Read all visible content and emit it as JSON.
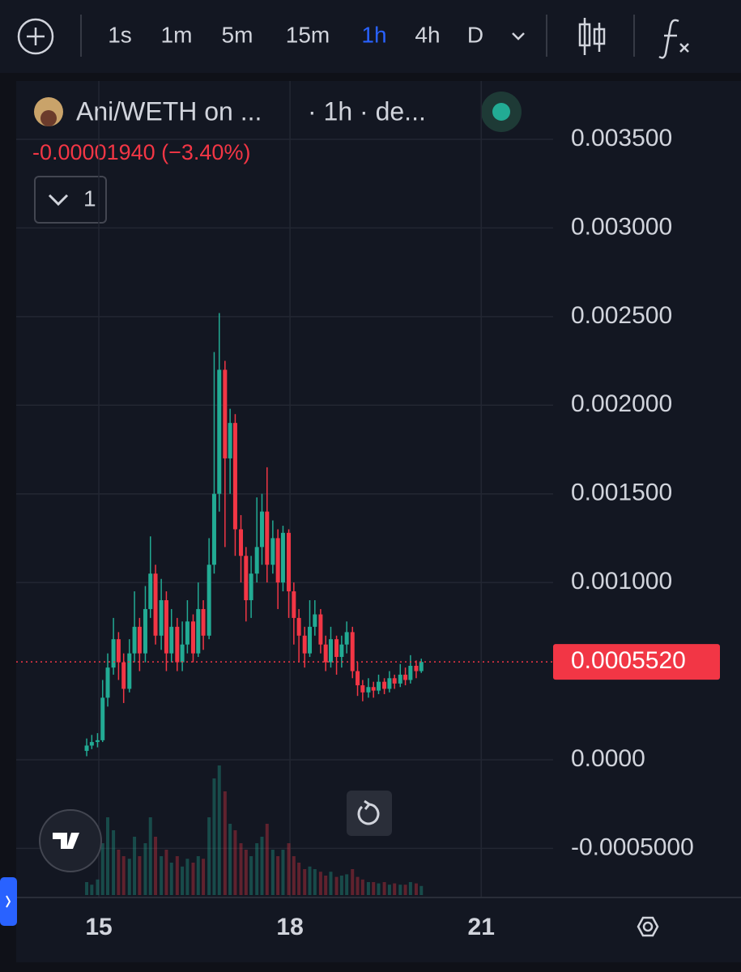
{
  "toolbar": {
    "intervals": [
      "1s",
      "1m",
      "5m",
      "15m",
      "1h",
      "4h",
      "D"
    ],
    "active": "1h"
  },
  "chart_data": {
    "type": "candlestick",
    "title": "Ani/WETH on ...",
    "subtitle": "· 1h · de...",
    "change_label": "-0.00001940 (−3.40%)",
    "indicators_label": "1",
    "x": [
      14.81,
      14.89,
      14.98,
      15.06,
      15.14,
      15.23,
      15.31,
      15.39,
      15.48,
      15.56,
      15.64,
      15.73,
      15.81,
      15.89,
      15.98,
      16.06,
      16.14,
      16.23,
      16.31,
      16.39,
      16.48,
      16.56,
      16.64,
      16.73,
      16.81,
      16.89,
      16.98,
      17.06,
      17.14,
      17.23,
      17.31,
      17.39,
      17.48,
      17.56,
      17.64,
      17.73,
      17.81,
      17.89,
      17.98,
      18.06,
      18.14,
      18.23,
      18.31,
      18.39,
      18.48,
      18.56,
      18.64,
      18.73,
      18.81,
      18.89,
      18.98,
      19.06,
      19.14,
      19.23,
      19.31,
      19.39,
      19.48,
      19.56,
      19.64,
      19.73,
      19.81,
      19.89,
      19.98,
      20.06
    ],
    "open": [
      5e-05,
      8e-05,
      0.0001,
      0.00011,
      0.00035,
      0.00052,
      0.00068,
      0.00055,
      0.0004,
      0.0006,
      0.00075,
      0.0006,
      0.00085,
      0.00105,
      0.0007,
      0.0009,
      0.0006,
      0.00075,
      0.00055,
      0.00065,
      0.00078,
      0.0006,
      0.00085,
      0.0007,
      0.0011,
      0.0015,
      0.0022,
      0.0017,
      0.0019,
      0.0013,
      0.00115,
      0.0009,
      0.00105,
      0.0012,
      0.0014,
      0.0011,
      0.00125,
      0.001,
      0.00128,
      0.00095,
      0.0008,
      0.0007,
      0.0006,
      0.00075,
      0.00082,
      0.00065,
      0.00055,
      0.00068,
      0.00058,
      0.00065,
      0.00072,
      0.0005,
      0.00042,
      0.00038,
      0.00041,
      0.00039,
      0.00044,
      0.0004,
      0.00046,
      0.00043,
      0.00048,
      0.00045,
      0.00053,
      0.0005
    ],
    "high": [
      0.00012,
      0.00014,
      0.00015,
      0.00045,
      0.0006,
      0.0008,
      0.00072,
      0.0006,
      0.00068,
      0.00095,
      0.0008,
      0.00098,
      0.00126,
      0.0011,
      0.00102,
      0.00095,
      0.00085,
      0.0008,
      0.00078,
      0.0009,
      0.00082,
      0.001,
      0.0009,
      0.00125,
      0.0023,
      0.00252,
      0.00225,
      0.00198,
      0.00195,
      0.00138,
      0.0012,
      0.00115,
      0.00148,
      0.0015,
      0.00165,
      0.00135,
      0.0013,
      0.00132,
      0.0013,
      0.001,
      0.00085,
      0.00075,
      0.0009,
      0.0009,
      0.00085,
      0.0007,
      0.00075,
      0.0007,
      0.0007,
      0.00078,
      0.00075,
      0.00055,
      0.00045,
      0.00046,
      0.00044,
      0.00048,
      0.00046,
      0.0005,
      0.00048,
      0.00054,
      0.00052,
      0.00059,
      0.00056,
      0.00057
    ],
    "low": [
      2e-05,
      6e-05,
      7e-05,
      0.0001,
      0.0003,
      0.00048,
      0.00045,
      0.00032,
      0.00038,
      0.00055,
      0.0005,
      0.00055,
      0.0008,
      0.00065,
      0.00062,
      0.0005,
      0.00055,
      0.0005,
      0.0005,
      0.0006,
      0.00055,
      0.00058,
      0.00062,
      0.00068,
      0.00105,
      0.0014,
      0.0012,
      0.0015,
      0.00115,
      0.001,
      0.00078,
      0.0008,
      0.001,
      0.0011,
      0.001,
      0.00105,
      0.00085,
      0.00095,
      0.0008,
      0.00065,
      0.00055,
      0.00052,
      0.00058,
      0.0007,
      0.0006,
      0.0005,
      0.00052,
      0.00048,
      0.00052,
      0.0006,
      0.00046,
      0.00036,
      0.00033,
      0.00035,
      0.00035,
      0.00037,
      0.00037,
      0.00038,
      0.0004,
      0.00041,
      0.00042,
      0.00043,
      0.00046,
      0.00049
    ],
    "close": [
      8e-05,
      0.0001,
      0.00011,
      0.00035,
      0.00052,
      0.00068,
      0.00055,
      0.0004,
      0.0006,
      0.00075,
      0.0006,
      0.00085,
      0.00105,
      0.0007,
      0.0009,
      0.0006,
      0.00075,
      0.00055,
      0.00065,
      0.00078,
      0.0006,
      0.00085,
      0.0007,
      0.0011,
      0.0015,
      0.0022,
      0.0017,
      0.0019,
      0.0013,
      0.00115,
      0.0009,
      0.00105,
      0.0012,
      0.0014,
      0.0011,
      0.00125,
      0.001,
      0.00128,
      0.00095,
      0.0008,
      0.0007,
      0.0006,
      0.00075,
      0.00082,
      0.00065,
      0.00055,
      0.00068,
      0.00058,
      0.00065,
      0.00072,
      0.0005,
      0.00042,
      0.00038,
      0.00041,
      0.00039,
      0.00044,
      0.0004,
      0.00046,
      0.00043,
      0.00048,
      0.00045,
      0.00053,
      0.0005,
      0.000552
    ],
    "volume": [
      10,
      8,
      12,
      40,
      60,
      50,
      35,
      30,
      28,
      45,
      30,
      40,
      60,
      45,
      30,
      35,
      25,
      30,
      22,
      28,
      25,
      30,
      28,
      60,
      90,
      100,
      80,
      55,
      50,
      40,
      35,
      30,
      40,
      45,
      55,
      35,
      30,
      35,
      40,
      30,
      25,
      20,
      22,
      20,
      18,
      15,
      18,
      14,
      15,
      16,
      20,
      14,
      12,
      10,
      10,
      9,
      10,
      8,
      9,
      8,
      8,
      10,
      9,
      7
    ],
    "up_color": "#22ab94",
    "down_color": "#f23645",
    "xlim": [
      13.704,
      22.128
    ],
    "xticks": [
      15,
      18,
      21
    ],
    "ylim": [
      -0.000777,
      0.003829
    ],
    "yticks": [
      {
        "value": -0.0005,
        "label": "-0.0005000"
      },
      {
        "value": 0,
        "label": "0.0000"
      },
      {
        "value": 0.001,
        "label": "0.001000"
      },
      {
        "value": 0.0015,
        "label": "0.001500"
      },
      {
        "value": 0.002,
        "label": "0.002000"
      },
      {
        "value": 0.0025,
        "label": "0.002500"
      },
      {
        "value": 0.003,
        "label": "0.003000"
      },
      {
        "value": 0.0035,
        "label": "0.003500"
      }
    ],
    "last_price": 0.000552,
    "last_price_label": "0.0005520",
    "grid": true
  }
}
